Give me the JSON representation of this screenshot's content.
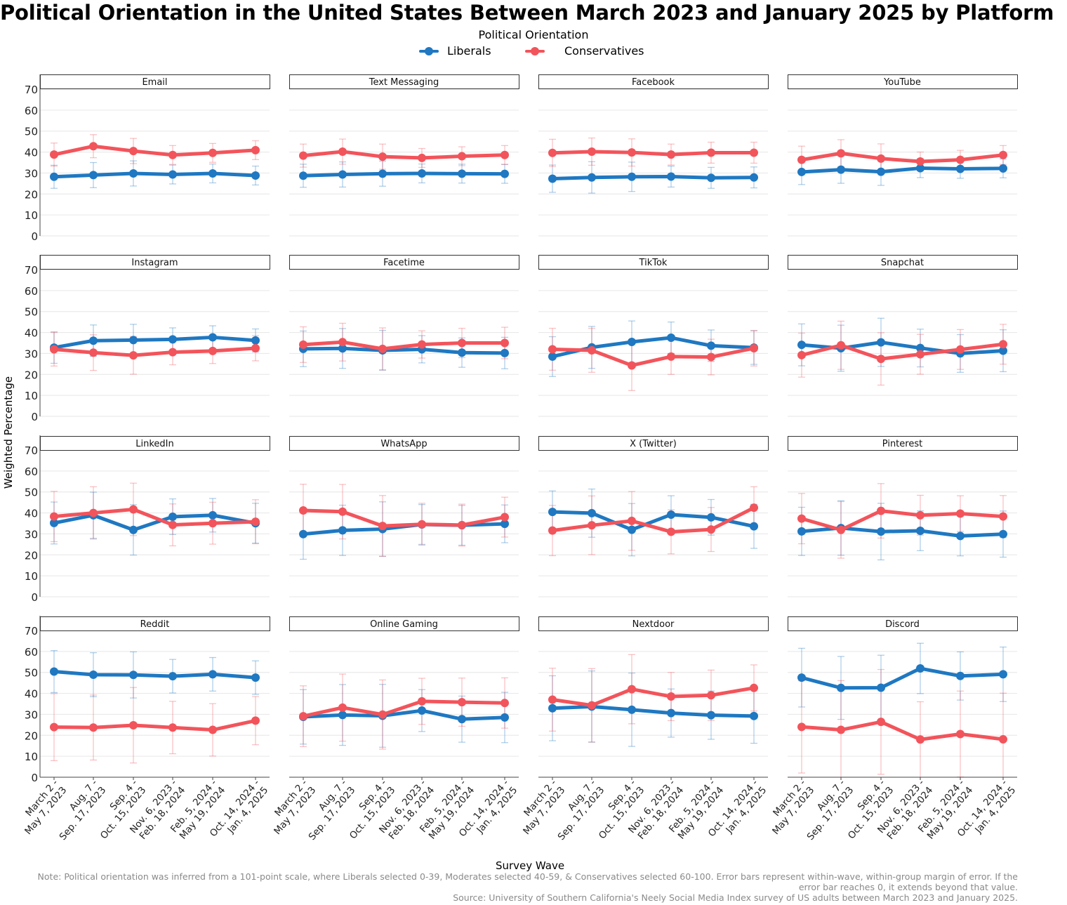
{
  "title": "Political Orientation in the United States Between March 2023 and January 2025 by Platform",
  "legend": {
    "title": "Political Orientation",
    "items": [
      {
        "label": "Liberals",
        "color": "#1f78c1"
      },
      {
        "label": "Conservatives",
        "color": "#f2545b"
      }
    ]
  },
  "axes": {
    "xlabel": "Survey Wave",
    "ylabel": "Weighted Percentage"
  },
  "note": "Note: Political orientation was inferred from a 101-point scale, where Liberals selected 0-39, Moderates selected 40-59, & Conservatives selected 60-100. Error bars represent within-wave, within-group margin of error. If the error bar reaches 0, it extends beyond that value.",
  "source": "Source: University of Southern California's Neely Social Media Index survey of US adults between March 2023 and January 2025.",
  "chart_data": {
    "type": "line",
    "facet_layout": {
      "rows": 4,
      "cols": 4
    },
    "ylim": [
      0,
      70
    ],
    "yticks": [
      0,
      10,
      20,
      30,
      40,
      50,
      60,
      70
    ],
    "grid": true,
    "legend_position": "top-center",
    "x_categories": [
      [
        "March 2 -",
        "May 7, 2023"
      ],
      [
        "Aug. 7 -",
        "Sep. 17, 2023"
      ],
      [
        "Sep. 4 -",
        "Oct. 15, 2023"
      ],
      [
        "Nov. 6, 2023 -",
        "Feb. 18, 2024"
      ],
      [
        "Feb. 5, 2024 -",
        "May 19, 2024"
      ],
      [
        "Oct. 14, 2024 -",
        "Jan. 4, 2025"
      ]
    ],
    "series_colors": {
      "Liberals": "#1f78c1",
      "Conservatives": "#f2545b"
    },
    "facets": [
      {
        "platform": "Email",
        "liberals": [
          28.2,
          29.0,
          29.8,
          29.3,
          29.8,
          28.8
        ],
        "liberals_moe": [
          5.5,
          6.0,
          6.0,
          4.5,
          4.5,
          4.5
        ],
        "conservatives": [
          38.8,
          42.8,
          40.5,
          38.6,
          39.6,
          40.9
        ],
        "conservatives_moe": [
          5.5,
          5.5,
          6.0,
          4.5,
          4.5,
          4.5
        ]
      },
      {
        "platform": "Text Messaging",
        "liberals": [
          28.7,
          29.3,
          29.7,
          29.8,
          29.7,
          29.6
        ],
        "liberals_moe": [
          5.5,
          6.0,
          6.0,
          4.5,
          4.5,
          4.5
        ],
        "conservatives": [
          38.3,
          40.2,
          37.8,
          37.2,
          38.0,
          38.6
        ],
        "conservatives_moe": [
          5.5,
          6.0,
          6.0,
          4.5,
          4.5,
          4.5
        ]
      },
      {
        "platform": "Facebook",
        "liberals": [
          27.3,
          27.9,
          28.2,
          28.3,
          27.7,
          27.9
        ],
        "liberals_moe": [
          6.5,
          7.5,
          7.0,
          5.0,
          5.0,
          5.0
        ],
        "conservatives": [
          39.6,
          40.2,
          39.8,
          38.8,
          39.7,
          39.7
        ],
        "conservatives_moe": [
          6.5,
          6.5,
          6.5,
          5.0,
          5.0,
          5.0
        ]
      },
      {
        "platform": "YouTube",
        "liberals": [
          30.5,
          31.6,
          30.6,
          32.3,
          32.0,
          32.2
        ],
        "liberals_moe": [
          6.0,
          6.5,
          6.5,
          4.5,
          4.5,
          4.5
        ],
        "conservatives": [
          36.3,
          39.4,
          36.9,
          35.5,
          36.3,
          38.6
        ],
        "conservatives_moe": [
          6.5,
          6.5,
          7.0,
          4.5,
          4.5,
          4.5
        ]
      },
      {
        "platform": "Instagram",
        "liberals": [
          32.8,
          36.1,
          36.4,
          36.7,
          37.7,
          36.2
        ],
        "liberals_moe": [
          7.5,
          7.5,
          7.5,
          5.5,
          5.5,
          5.5
        ],
        "conservatives": [
          32.0,
          30.4,
          29.1,
          30.6,
          31.2,
          32.5
        ],
        "conservatives_moe": [
          8.0,
          8.5,
          9.0,
          6.0,
          6.0,
          6.0
        ]
      },
      {
        "platform": "Facetime",
        "liberals": [
          32.2,
          32.4,
          31.5,
          32.0,
          30.4,
          30.2
        ],
        "liberals_moe": [
          8.5,
          9.5,
          9.5,
          6.5,
          7.0,
          7.5
        ],
        "conservatives": [
          34.2,
          35.4,
          32.2,
          34.3,
          35.0,
          35.0
        ],
        "conservatives_moe": [
          8.5,
          9.0,
          10.0,
          6.5,
          7.0,
          7.5
        ]
      },
      {
        "platform": "TikTok",
        "liberals": [
          28.5,
          32.9,
          35.5,
          37.5,
          33.7,
          32.8
        ],
        "liberals_moe": [
          9.5,
          10.0,
          10.0,
          7.5,
          7.5,
          8.0
        ],
        "conservatives": [
          32.0,
          31.5,
          24.3,
          28.5,
          28.3,
          32.5
        ],
        "conservatives_moe": [
          10.0,
          10.5,
          12.0,
          8.5,
          8.5,
          8.5
        ]
      },
      {
        "platform": "Snapchat",
        "liberals": [
          34.1,
          32.5,
          35.3,
          32.6,
          30.0,
          31.3
        ],
        "liberals_moe": [
          10.0,
          11.0,
          11.5,
          9.0,
          9.0,
          10.0
        ],
        "conservatives": [
          29.2,
          33.9,
          27.4,
          29.6,
          31.9,
          34.4
        ],
        "conservatives_moe": [
          10.5,
          11.5,
          12.5,
          9.5,
          9.5,
          9.5
        ]
      },
      {
        "platform": "LinkedIn",
        "liberals": [
          35.2,
          38.9,
          31.9,
          38.2,
          38.9,
          35.1
        ],
        "liberals_moe": [
          10.0,
          11.0,
          12.0,
          8.5,
          8.0,
          9.5
        ],
        "conservatives": [
          38.3,
          40.0,
          41.7,
          34.3,
          35.1,
          35.8
        ],
        "conservatives_moe": [
          12.0,
          12.5,
          12.5,
          10.0,
          10.0,
          10.5
        ]
      },
      {
        "platform": "WhatsApp",
        "liberals": [
          29.9,
          31.7,
          32.3,
          34.5,
          34.1,
          34.8
        ],
        "liberals_moe": [
          12.0,
          12.0,
          13.0,
          9.5,
          9.5,
          9.0
        ],
        "conservatives": [
          41.2,
          40.6,
          33.8,
          34.6,
          34.2,
          38.0
        ],
        "conservatives_moe": [
          12.5,
          13.0,
          14.5,
          10.0,
          10.0,
          9.5
        ]
      },
      {
        "platform": "X (Twitter)",
        "liberals": [
          40.5,
          39.9,
          32.0,
          39.2,
          37.9,
          33.6
        ],
        "liberals_moe": [
          10.0,
          11.5,
          12.5,
          9.0,
          8.5,
          10.5
        ],
        "conservatives": [
          31.6,
          34.1,
          36.2,
          31.0,
          32.1,
          42.5
        ],
        "conservatives_moe": [
          12.0,
          14.0,
          14.0,
          10.5,
          10.5,
          10.0
        ]
      },
      {
        "platform": "Pinterest",
        "liberals": [
          31.2,
          32.8,
          31.1,
          31.5,
          29.0,
          29.9
        ],
        "liberals_moe": [
          11.5,
          13.0,
          13.5,
          9.5,
          9.5,
          11.0
        ],
        "conservatives": [
          37.3,
          31.9,
          41.0,
          38.9,
          39.7,
          38.3
        ],
        "conservatives_moe": [
          12.0,
          13.5,
          13.0,
          9.5,
          8.5,
          10.0
        ]
      },
      {
        "platform": "Reddit",
        "liberals": [
          50.4,
          48.9,
          48.8,
          48.2,
          49.1,
          47.5
        ],
        "liberals_moe": [
          10.0,
          10.5,
          11.0,
          8.0,
          8.0,
          8.0
        ],
        "conservatives": [
          23.9,
          23.7,
          24.8,
          23.7,
          22.6,
          27.0
        ],
        "conservatives_moe": [
          16.0,
          15.5,
          18.0,
          12.5,
          12.5,
          11.5
        ]
      },
      {
        "platform": "Online Gaming",
        "liberals": [
          28.8,
          29.7,
          29.3,
          31.8,
          27.7,
          28.5
        ],
        "liberals_moe": [
          13.0,
          14.5,
          15.0,
          10.0,
          11.0,
          12.0
        ],
        "conservatives": [
          29.1,
          33.2,
          29.9,
          36.2,
          35.8,
          35.4
        ],
        "conservatives_moe": [
          14.5,
          16.0,
          16.5,
          11.0,
          11.5,
          12.0
        ]
      },
      {
        "platform": "Nextdoor",
        "liberals": [
          32.9,
          33.7,
          32.2,
          30.6,
          29.6,
          29.2
        ],
        "liberals_moe": [
          15.5,
          17.0,
          17.5,
          11.5,
          11.5,
          13.0
        ],
        "conservatives": [
          37.0,
          34.3,
          42.0,
          38.5,
          39.1,
          42.6
        ],
        "conservatives_moe": [
          15.0,
          17.5,
          16.5,
          11.5,
          12.0,
          11.0
        ]
      },
      {
        "platform": "Discord",
        "liberals": [
          47.5,
          42.6,
          42.7,
          51.9,
          48.3,
          49.1
        ],
        "liberals_moe": [
          14.0,
          15.0,
          15.5,
          12.0,
          11.5,
          13.0
        ],
        "conservatives": [
          24.0,
          22.6,
          26.4,
          18.0,
          20.6,
          18.1
        ],
        "conservatives_moe": [
          22.0,
          23.5,
          25.0,
          18.0,
          20.5,
          22.0
        ]
      }
    ]
  }
}
